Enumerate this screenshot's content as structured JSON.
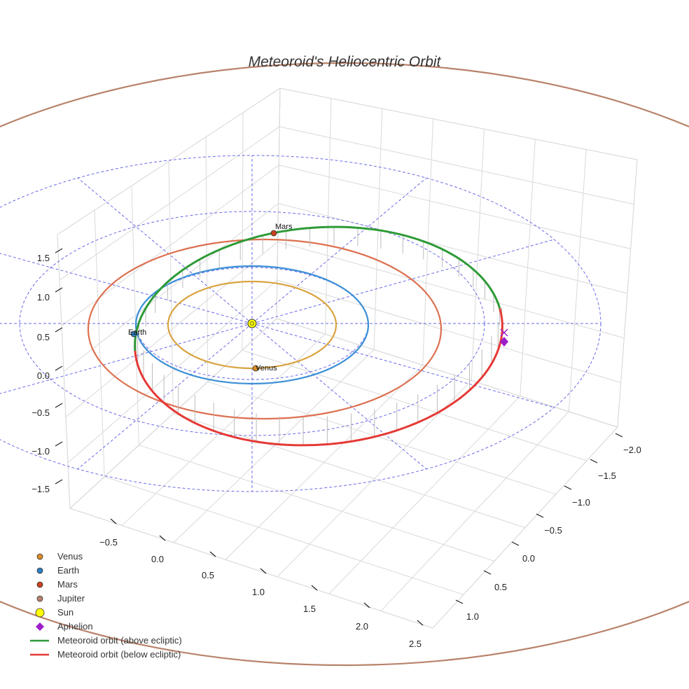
{
  "chart_data": {
    "type": "3d-line",
    "title": "Meteoroid's Heliocentric Orbit",
    "z_ticks": [
      "−1.5",
      "−1.0",
      "−0.5",
      "0.0",
      "0.5",
      "1.0",
      "1.5"
    ],
    "x_ticks": [
      "−0.5",
      "0.0",
      "0.5",
      "1.0",
      "1.5",
      "2.0",
      "2.5"
    ],
    "y_ticks": [
      "1.0",
      "0.5",
      "0.0",
      "−0.5",
      "−1.0",
      "−1.5",
      "−2.0"
    ],
    "planets": [
      {
        "name": "Venus",
        "label": "Venus",
        "color": "#d98c2b",
        "orbit_color": "#d9a441",
        "orbit_radius_au": 0.72
      },
      {
        "name": "Earth",
        "label": "Earth",
        "color": "#2f7fc1",
        "orbit_color": "#3b8fd6",
        "orbit_radius_au": 1.0
      },
      {
        "name": "Mars",
        "label": "Mars",
        "color": "#c8421e",
        "orbit_color": "#dd7050",
        "orbit_radius_au": 1.52
      },
      {
        "name": "Jupiter",
        "label": "",
        "color": "#b8826a",
        "orbit_color": "#b8826a",
        "orbit_radius_au": 5.2
      }
    ],
    "reference_circles_au": [
      1.0,
      2.0,
      3.0
    ],
    "meteoroid_orbit": {
      "perihelion_au": 1.0,
      "aphelion_au": 2.35,
      "above_color": "#2e9a36",
      "below_color": "#e53935"
    },
    "legend": [
      {
        "label": "Venus",
        "marker": "circle",
        "color": "#d98c2b"
      },
      {
        "label": "Earth",
        "marker": "circle",
        "color": "#2f7fc1"
      },
      {
        "label": "Mars",
        "marker": "circle",
        "color": "#c8421e"
      },
      {
        "label": "Jupiter",
        "marker": "circle",
        "color": "#b8826a"
      },
      {
        "label": "Sun",
        "marker": "circle",
        "color": "#ffff00"
      },
      {
        "label": "Aphelion",
        "marker": "diamond",
        "color": "#9b1fc9"
      },
      {
        "label": "Meteoroid orbit (above ecliptic)",
        "marker": "line",
        "color": "#2e9a36"
      },
      {
        "label": "Meteoroid orbit (below ecliptic)",
        "marker": "line",
        "color": "#e53935"
      }
    ]
  }
}
